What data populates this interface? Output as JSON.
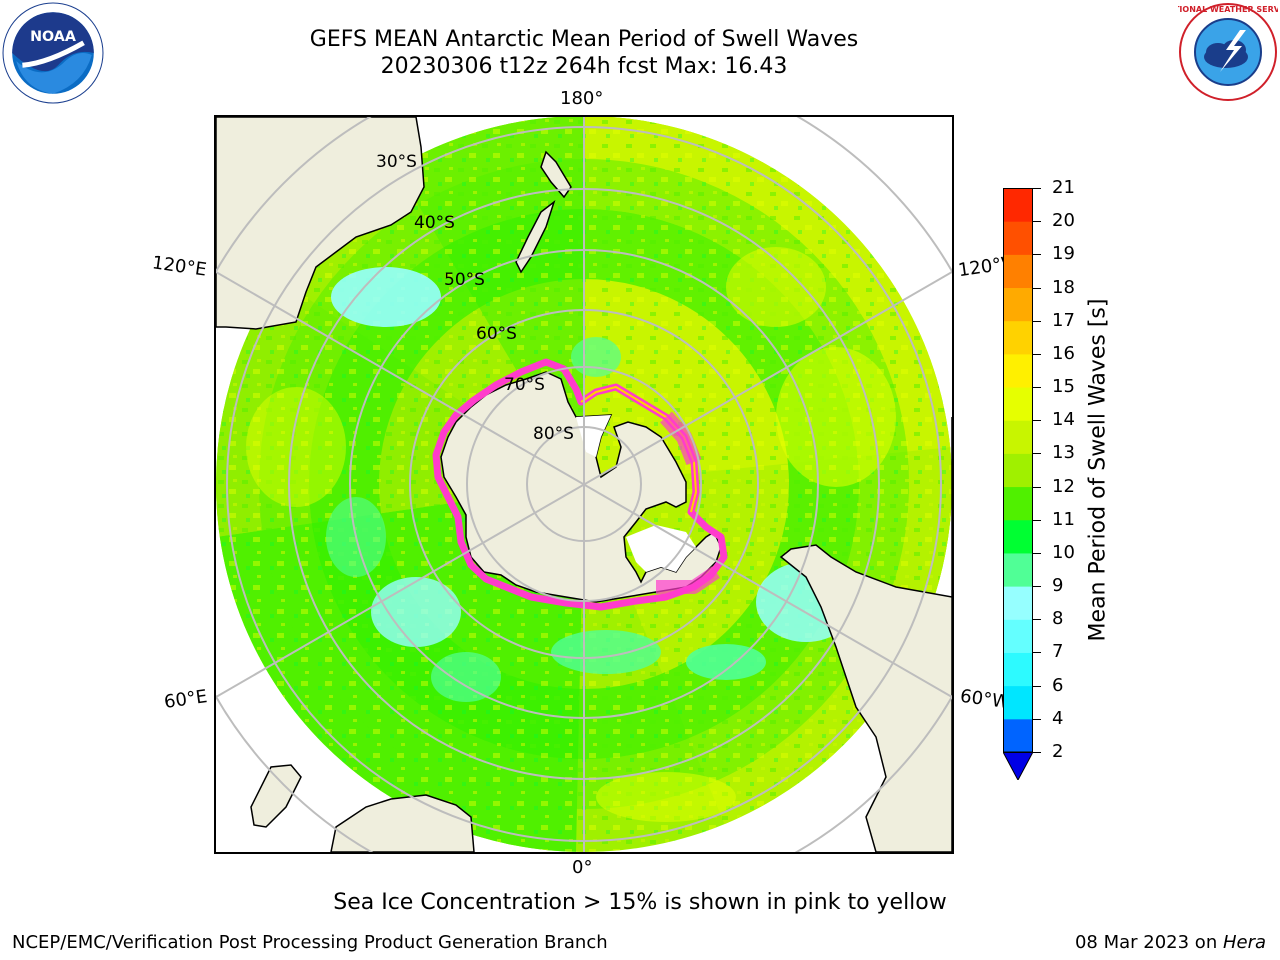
{
  "header": {
    "title_line1": "GEFS MEAN Antarctic Mean Period of Swell Waves",
    "title_line2": "20230306 t12z 264h fcst   Max: 16.43"
  },
  "logos": {
    "left": "noaa-logo",
    "right": "national-weather-service-logo",
    "left_text": "NOAA",
    "right_text": "NATIONAL WEATHER SERVICE"
  },
  "map": {
    "projection": "south-polar-stereographic",
    "lon_labels": {
      "top": "180°",
      "bottom": "0°",
      "upper_left": "120°E",
      "upper_right": "120°W",
      "lower_left": "60°E",
      "lower_right": "60°W"
    },
    "lat_labels": [
      "30°S",
      "40°S",
      "50°S",
      "60°S",
      "70°S",
      "80°S"
    ],
    "colors": {
      "land": "#efeedd",
      "ocean_base": "#b8f000",
      "ice_edge": "#ff3ccc",
      "grid": "#bdbdbd"
    }
  },
  "colorbar": {
    "title": "Mean Period of Swell Waves [s]",
    "ticks": [
      "2",
      "4",
      "6",
      "7",
      "8",
      "9",
      "10",
      "11",
      "12",
      "13",
      "14",
      "15",
      "16",
      "17",
      "18",
      "19",
      "20",
      "21"
    ],
    "colors": [
      "#0064ff",
      "#00e6ff",
      "#2dfaff",
      "#64ffff",
      "#96ffff",
      "#50ff96",
      "#00ff32",
      "#50f000",
      "#a0f000",
      "#c8f500",
      "#e6ff00",
      "#fff000",
      "#ffd200",
      "#ffaa00",
      "#ff8000",
      "#ff5000",
      "#ff2800",
      "#ff0000"
    ],
    "extend_color": "#0000e6"
  },
  "notes": {
    "ice": "Sea Ice Concentration > 15% is shown in pink to yellow"
  },
  "footer": {
    "left": "NCEP/EMC/Verification Post Processing Product Generation Branch",
    "right_prefix": "08 Mar 2023 on ",
    "right_machine": "Hera"
  }
}
